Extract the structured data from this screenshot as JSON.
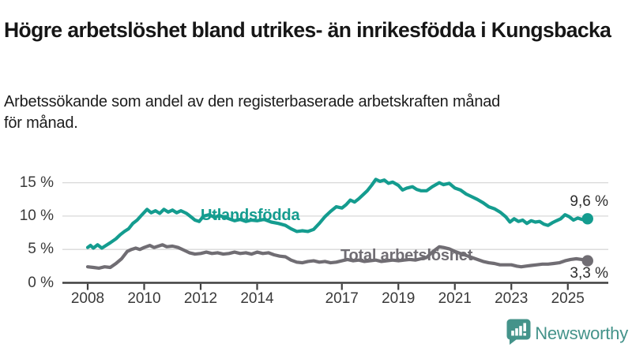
{
  "header": {
    "title": "Högre arbetslöshet bland utrikes- än inrikesfödda i Kungsbacka",
    "subtitle_line1": "Arbetssökande som andel av den registerbaserade arbetskraften månad",
    "subtitle_line2": "för månad."
  },
  "chart_data": {
    "type": "line",
    "title": "Högre arbetslöshet bland utrikes- än inrikesfödda i Kungsbacka",
    "subtitle": "Arbetssökande som andel av den registerbaserade arbetskraften månad för månad.",
    "xlabel": "",
    "ylabel": "",
    "unit": "%",
    "grid": true,
    "grid_color": "#d8d8d8",
    "axis_color": "#3f3f3f",
    "text_color": "#3a3a3a",
    "xlim": [
      2007.1,
      2026.45
    ],
    "ylim": [
      0,
      17
    ],
    "y_ticks": [
      {
        "value": 0,
        "label": "0 %"
      },
      {
        "value": 5,
        "label": "5 %"
      },
      {
        "value": 10,
        "label": "10 %"
      },
      {
        "value": 15,
        "label": "15 %"
      }
    ],
    "x_ticks": [
      {
        "value": 2008,
        "label": "2008"
      },
      {
        "value": 2010,
        "label": "2010"
      },
      {
        "value": 2012,
        "label": "2012"
      },
      {
        "value": 2014,
        "label": "2014"
      },
      {
        "value": 2017,
        "label": "2017"
      },
      {
        "value": 2019,
        "label": "2019"
      },
      {
        "value": 2021,
        "label": "2021"
      },
      {
        "value": 2023,
        "label": "2023"
      },
      {
        "value": 2025,
        "label": "2025"
      }
    ],
    "legend_position": "inline-labels",
    "series": [
      {
        "name": "Utlandsfödda",
        "color": "#149c8f",
        "end_label": "9,6 %",
        "end_value": 9.6,
        "points": [
          [
            2008.0,
            5.3
          ],
          [
            2008.1,
            5.6
          ],
          [
            2008.2,
            5.2
          ],
          [
            2008.35,
            5.7
          ],
          [
            2008.5,
            5.2
          ],
          [
            2008.65,
            5.6
          ],
          [
            2008.8,
            6.0
          ],
          [
            2009.0,
            6.6
          ],
          [
            2009.15,
            7.2
          ],
          [
            2009.3,
            7.7
          ],
          [
            2009.45,
            8.1
          ],
          [
            2009.6,
            8.9
          ],
          [
            2009.75,
            9.4
          ],
          [
            2009.9,
            10.1
          ],
          [
            2010.1,
            11.0
          ],
          [
            2010.25,
            10.5
          ],
          [
            2010.4,
            10.8
          ],
          [
            2010.55,
            10.4
          ],
          [
            2010.7,
            11.0
          ],
          [
            2010.85,
            10.6
          ],
          [
            2011.0,
            10.9
          ],
          [
            2011.15,
            10.5
          ],
          [
            2011.3,
            10.8
          ],
          [
            2011.5,
            10.4
          ],
          [
            2011.65,
            9.9
          ],
          [
            2011.8,
            9.4
          ],
          [
            2011.95,
            9.2
          ],
          [
            2012.1,
            10.0
          ],
          [
            2012.3,
            10.2
          ],
          [
            2012.5,
            9.8
          ],
          [
            2012.65,
            10.1
          ],
          [
            2012.8,
            9.9
          ],
          [
            2013.0,
            9.6
          ],
          [
            2013.2,
            9.3
          ],
          [
            2013.4,
            9.5
          ],
          [
            2013.6,
            9.2
          ],
          [
            2013.8,
            9.4
          ],
          [
            2014.0,
            9.3
          ],
          [
            2014.25,
            9.5
          ],
          [
            2014.5,
            9.1
          ],
          [
            2014.75,
            8.9
          ],
          [
            2015.0,
            8.6
          ],
          [
            2015.2,
            8.1
          ],
          [
            2015.4,
            7.7
          ],
          [
            2015.6,
            7.8
          ],
          [
            2015.8,
            7.7
          ],
          [
            2016.0,
            8.0
          ],
          [
            2016.2,
            8.9
          ],
          [
            2016.4,
            9.9
          ],
          [
            2016.6,
            10.7
          ],
          [
            2016.8,
            11.4
          ],
          [
            2017.0,
            11.2
          ],
          [
            2017.15,
            11.7
          ],
          [
            2017.3,
            12.4
          ],
          [
            2017.45,
            12.1
          ],
          [
            2017.6,
            12.6
          ],
          [
            2017.75,
            13.2
          ],
          [
            2017.9,
            13.8
          ],
          [
            2018.05,
            14.6
          ],
          [
            2018.2,
            15.5
          ],
          [
            2018.35,
            15.2
          ],
          [
            2018.5,
            15.4
          ],
          [
            2018.65,
            14.9
          ],
          [
            2018.8,
            15.1
          ],
          [
            2019.0,
            14.6
          ],
          [
            2019.15,
            13.9
          ],
          [
            2019.3,
            14.2
          ],
          [
            2019.5,
            14.4
          ],
          [
            2019.65,
            14.0
          ],
          [
            2019.8,
            13.8
          ],
          [
            2020.0,
            13.8
          ],
          [
            2020.2,
            14.4
          ],
          [
            2020.45,
            15.0
          ],
          [
            2020.6,
            14.7
          ],
          [
            2020.8,
            14.9
          ],
          [
            2021.0,
            14.2
          ],
          [
            2021.2,
            13.9
          ],
          [
            2021.4,
            13.3
          ],
          [
            2021.6,
            12.9
          ],
          [
            2021.8,
            12.5
          ],
          [
            2022.0,
            12.0
          ],
          [
            2022.2,
            11.4
          ],
          [
            2022.4,
            11.1
          ],
          [
            2022.6,
            10.6
          ],
          [
            2022.8,
            9.9
          ],
          [
            2022.95,
            9.1
          ],
          [
            2023.1,
            9.6
          ],
          [
            2023.25,
            9.2
          ],
          [
            2023.4,
            9.4
          ],
          [
            2023.55,
            8.9
          ],
          [
            2023.7,
            9.3
          ],
          [
            2023.85,
            9.1
          ],
          [
            2024.0,
            9.2
          ],
          [
            2024.15,
            8.8
          ],
          [
            2024.3,
            8.6
          ],
          [
            2024.45,
            9.0
          ],
          [
            2024.6,
            9.3
          ],
          [
            2024.75,
            9.6
          ],
          [
            2024.9,
            10.2
          ],
          [
            2025.05,
            9.9
          ],
          [
            2025.2,
            9.4
          ],
          [
            2025.35,
            9.7
          ],
          [
            2025.5,
            9.5
          ],
          [
            2025.7,
            9.6
          ]
        ]
      },
      {
        "name": "Total arbetslöshet",
        "color": "#706d73",
        "end_label": "3,3 %",
        "end_value": 3.3,
        "points": [
          [
            2008.0,
            2.4
          ],
          [
            2008.2,
            2.3
          ],
          [
            2008.4,
            2.2
          ],
          [
            2008.6,
            2.4
          ],
          [
            2008.8,
            2.3
          ],
          [
            2009.0,
            2.9
          ],
          [
            2009.2,
            3.6
          ],
          [
            2009.4,
            4.7
          ],
          [
            2009.55,
            5.0
          ],
          [
            2009.7,
            5.2
          ],
          [
            2009.85,
            5.0
          ],
          [
            2010.0,
            5.3
          ],
          [
            2010.2,
            5.6
          ],
          [
            2010.35,
            5.3
          ],
          [
            2010.5,
            5.5
          ],
          [
            2010.65,
            5.7
          ],
          [
            2010.8,
            5.4
          ],
          [
            2011.0,
            5.5
          ],
          [
            2011.2,
            5.3
          ],
          [
            2011.4,
            4.9
          ],
          [
            2011.6,
            4.5
          ],
          [
            2011.8,
            4.3
          ],
          [
            2012.0,
            4.4
          ],
          [
            2012.2,
            4.6
          ],
          [
            2012.4,
            4.4
          ],
          [
            2012.6,
            4.5
          ],
          [
            2012.8,
            4.3
          ],
          [
            2013.0,
            4.4
          ],
          [
            2013.2,
            4.6
          ],
          [
            2013.4,
            4.4
          ],
          [
            2013.6,
            4.5
          ],
          [
            2013.8,
            4.3
          ],
          [
            2014.0,
            4.6
          ],
          [
            2014.2,
            4.4
          ],
          [
            2014.4,
            4.5
          ],
          [
            2014.6,
            4.2
          ],
          [
            2014.8,
            4.0
          ],
          [
            2015.0,
            3.9
          ],
          [
            2015.2,
            3.4
          ],
          [
            2015.4,
            3.1
          ],
          [
            2015.6,
            3.0
          ],
          [
            2015.8,
            3.2
          ],
          [
            2016.0,
            3.3
          ],
          [
            2016.2,
            3.1
          ],
          [
            2016.4,
            3.2
          ],
          [
            2016.6,
            3.0
          ],
          [
            2016.8,
            3.1
          ],
          [
            2017.0,
            3.3
          ],
          [
            2017.2,
            3.5
          ],
          [
            2017.4,
            3.3
          ],
          [
            2017.6,
            3.4
          ],
          [
            2017.8,
            3.2
          ],
          [
            2018.0,
            3.3
          ],
          [
            2018.2,
            3.4
          ],
          [
            2018.4,
            3.2
          ],
          [
            2018.6,
            3.3
          ],
          [
            2018.8,
            3.4
          ],
          [
            2019.0,
            3.3
          ],
          [
            2019.2,
            3.4
          ],
          [
            2019.4,
            3.5
          ],
          [
            2019.6,
            3.4
          ],
          [
            2019.8,
            3.6
          ],
          [
            2020.0,
            3.8
          ],
          [
            2020.2,
            4.6
          ],
          [
            2020.45,
            5.4
          ],
          [
            2020.6,
            5.3
          ],
          [
            2020.8,
            5.1
          ],
          [
            2021.0,
            4.7
          ],
          [
            2021.2,
            4.4
          ],
          [
            2021.4,
            4.1
          ],
          [
            2021.6,
            3.8
          ],
          [
            2021.8,
            3.5
          ],
          [
            2022.0,
            3.2
          ],
          [
            2022.2,
            3.0
          ],
          [
            2022.4,
            2.9
          ],
          [
            2022.6,
            2.7
          ],
          [
            2022.8,
            2.7
          ],
          [
            2023.0,
            2.7
          ],
          [
            2023.2,
            2.5
          ],
          [
            2023.35,
            2.4
          ],
          [
            2023.5,
            2.5
          ],
          [
            2023.7,
            2.6
          ],
          [
            2023.9,
            2.7
          ],
          [
            2024.1,
            2.8
          ],
          [
            2024.3,
            2.8
          ],
          [
            2024.5,
            2.9
          ],
          [
            2024.7,
            3.0
          ],
          [
            2024.9,
            3.3
          ],
          [
            2025.1,
            3.5
          ],
          [
            2025.3,
            3.6
          ],
          [
            2025.5,
            3.5
          ],
          [
            2025.7,
            3.3
          ]
        ]
      }
    ]
  },
  "branding": {
    "logo_text": "Newsworthy",
    "logo_color": "#44938a"
  }
}
